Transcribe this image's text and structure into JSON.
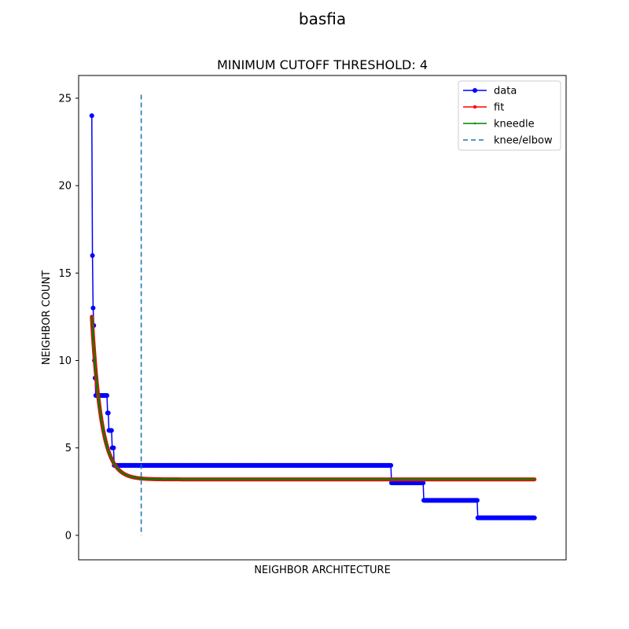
{
  "figure": {
    "title": "basfia"
  },
  "chart_data": {
    "type": "line",
    "title": "MINIMUM CUTOFF THRESHOLD: 4",
    "xlabel": "NEIGHBOR ARCHITECTURE",
    "ylabel": "NEIGHBOR COUNT",
    "xlim": [
      -20,
      720
    ],
    "ylim": [
      -1.4,
      26.3
    ],
    "yticks": [
      0,
      5,
      10,
      15,
      20,
      25
    ],
    "x_tick_labels_visible": false,
    "grid": false,
    "legend_position": "top-right",
    "knee": {
      "x": 75,
      "y_range": [
        0,
        25.2
      ],
      "label": "knee/elbow",
      "color": "#1f77b4",
      "style": "dashed"
    },
    "series": [
      {
        "name": "data",
        "color": "#0000ff",
        "marker": "circle",
        "steps": [
          {
            "x_start": 0,
            "x_end": 0,
            "y": 24
          },
          {
            "x_start": 1,
            "x_end": 1,
            "y": 16
          },
          {
            "x_start": 2,
            "x_end": 2,
            "y": 13
          },
          {
            "x_start": 3,
            "x_end": 3,
            "y": 12
          },
          {
            "x_start": 4,
            "x_end": 4,
            "y": 10
          },
          {
            "x_start": 5,
            "x_end": 5,
            "y": 9
          },
          {
            "x_start": 6,
            "x_end": 23,
            "y": 8
          },
          {
            "x_start": 24,
            "x_end": 25,
            "y": 7
          },
          {
            "x_start": 26,
            "x_end": 30,
            "y": 6
          },
          {
            "x_start": 31,
            "x_end": 33,
            "y": 5
          },
          {
            "x_start": 34,
            "x_end": 454,
            "y": 4
          },
          {
            "x_start": 455,
            "x_end": 503,
            "y": 3
          },
          {
            "x_start": 504,
            "x_end": 585,
            "y": 2
          },
          {
            "x_start": 586,
            "x_end": 672,
            "y": 1
          }
        ]
      },
      {
        "name": "fit",
        "color": "#ff0000",
        "marker": "circle",
        "model": {
          "form": "exponential_decay",
          "asymptote": 3.2,
          "amplitude": 9.3,
          "decay_length": 14.5
        },
        "x_range": [
          0,
          672
        ]
      },
      {
        "name": "kneedle",
        "color": "#008000",
        "marker": "point",
        "model": {
          "form": "exponential_decay",
          "asymptote": 3.2,
          "amplitude": 9.3,
          "decay_length": 14.5
        },
        "x_range": [
          0,
          672
        ]
      }
    ]
  }
}
